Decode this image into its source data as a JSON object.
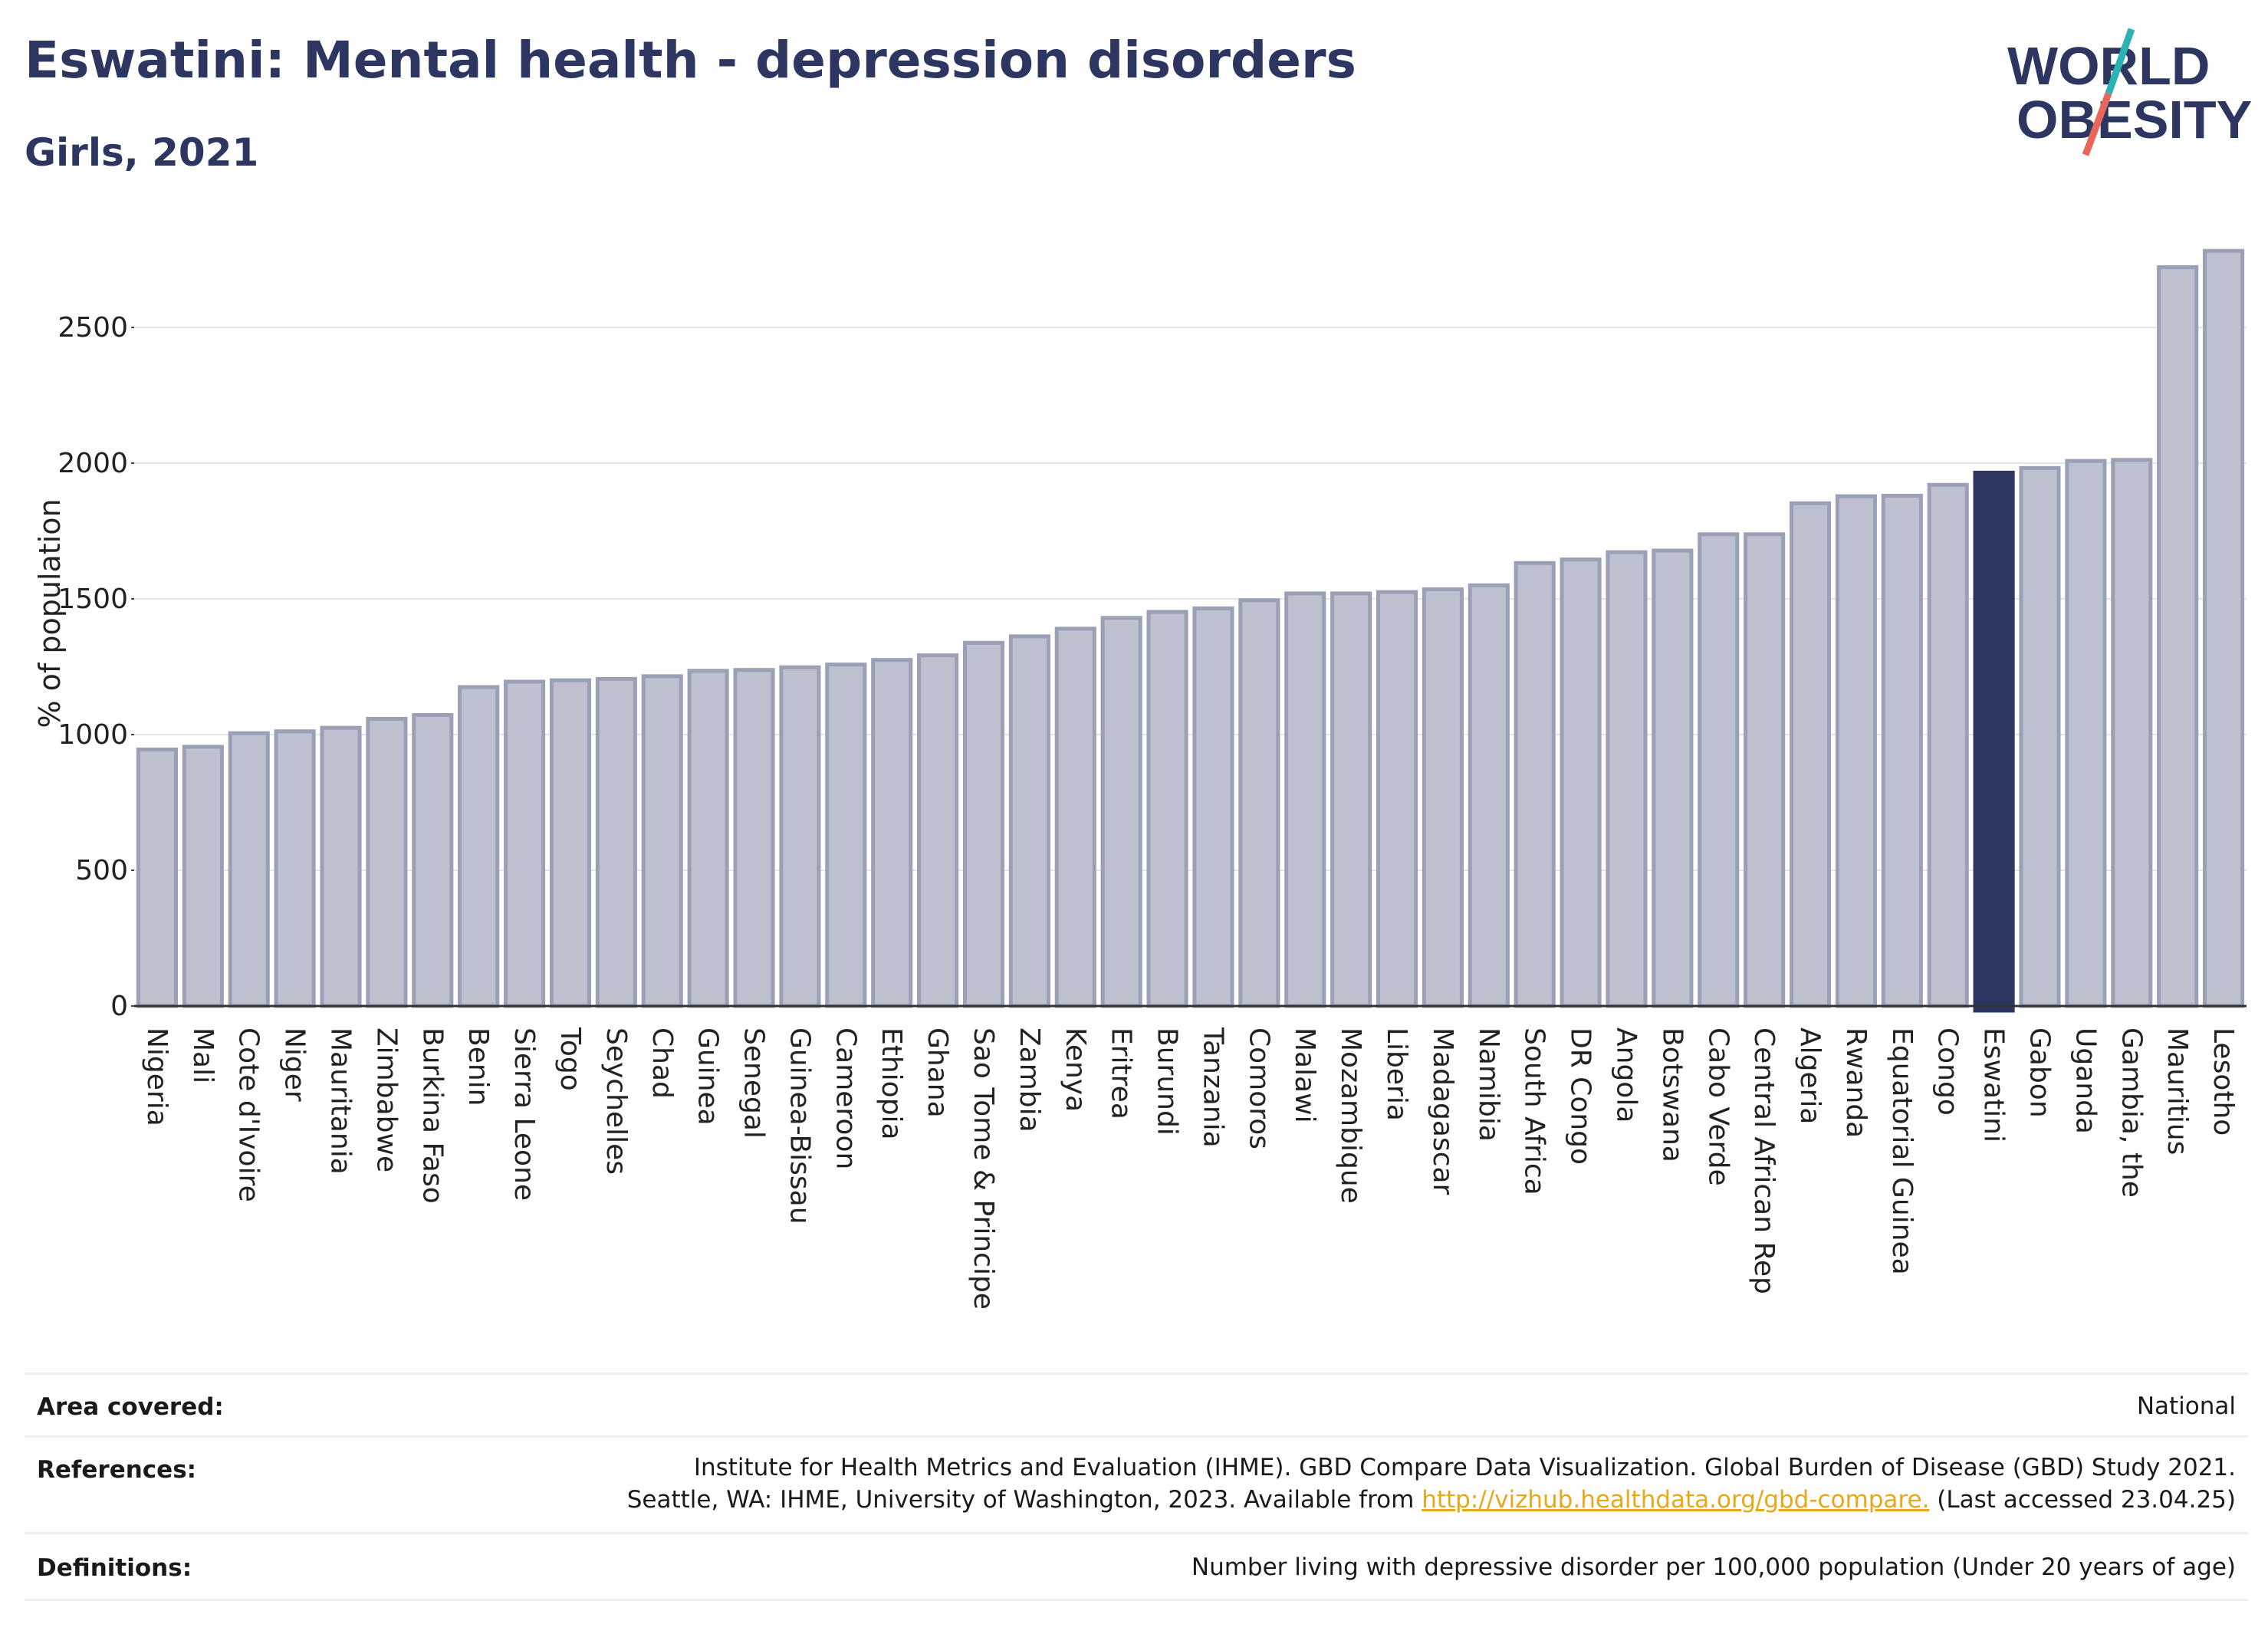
{
  "header": {
    "title": "Eswatini: Mental health - depression disorders",
    "subtitle": "Girls, 2021"
  },
  "logo": {
    "line1": "WORLD",
    "line2": "OBESITY",
    "color": "#2d3561",
    "accent_teal": "#2bb3b1",
    "accent_red": "#e8675a"
  },
  "chart_data": {
    "type": "bar",
    "title": "",
    "ylabel": "% of population",
    "xlabel": "",
    "ylim": [
      0,
      2800
    ],
    "yticks": [
      0,
      500,
      1000,
      1500,
      2000,
      2500
    ],
    "grid": true,
    "highlight": "Eswatini",
    "bar_color": "#bcc0cf",
    "bar_edge_color": "#9aa0b6",
    "highlight_color": "#2d3561",
    "categories": [
      "Nigeria",
      "Mali",
      "Cote d'Ivoire",
      "Niger",
      "Mauritania",
      "Zimbabwe",
      "Burkina Faso",
      "Benin",
      "Sierra Leone",
      "Togo",
      "Seychelles",
      "Chad",
      "Guinea",
      "Senegal",
      "Guinea-Bissau",
      "Cameroon",
      "Ethiopia",
      "Ghana",
      "Sao Tome & Principe",
      "Zambia",
      "Kenya",
      "Eritrea",
      "Burundi",
      "Tanzania",
      "Comoros",
      "Malawi",
      "Mozambique",
      "Liberia",
      "Madagascar",
      "Namibia",
      "South Africa",
      "DR Congo",
      "Angola",
      "Botswana",
      "Cabo Verde",
      "Central African Rep",
      "Algeria",
      "Rwanda",
      "Equatorial Guinea",
      "Congo",
      "Eswatini",
      "Gabon",
      "Uganda",
      "Gambia, the",
      "Mauritius",
      "Lesotho"
    ],
    "values": [
      945,
      955,
      1005,
      1012,
      1025,
      1058,
      1072,
      1175,
      1195,
      1200,
      1205,
      1215,
      1235,
      1238,
      1248,
      1258,
      1275,
      1292,
      1338,
      1362,
      1390,
      1430,
      1452,
      1465,
      1495,
      1520,
      1520,
      1525,
      1535,
      1550,
      1632,
      1645,
      1672,
      1678,
      1738,
      1738,
      1852,
      1878,
      1880,
      1920,
      1965,
      1982,
      2008,
      2012,
      2722,
      2782
    ]
  },
  "info": {
    "area_label": "Area covered:",
    "area_value": "National",
    "references_label": "References:",
    "references_line1": "Institute for Health Metrics and Evaluation (IHME). GBD Compare Data Visualization. Global Burden of Disease (GBD) Study 2021.",
    "references_line2_pre": "Seattle, WA: IHME, University of Washington, 2023. Available from ",
    "references_link": "http://vizhub.healthdata.org/gbd-compare.",
    "references_line2_post": " (Last accessed 23.04.25)",
    "definitions_label": "Definitions:",
    "definitions_value": "Number living with depressive disorder per 100,000 population (Under 20 years of age)"
  }
}
